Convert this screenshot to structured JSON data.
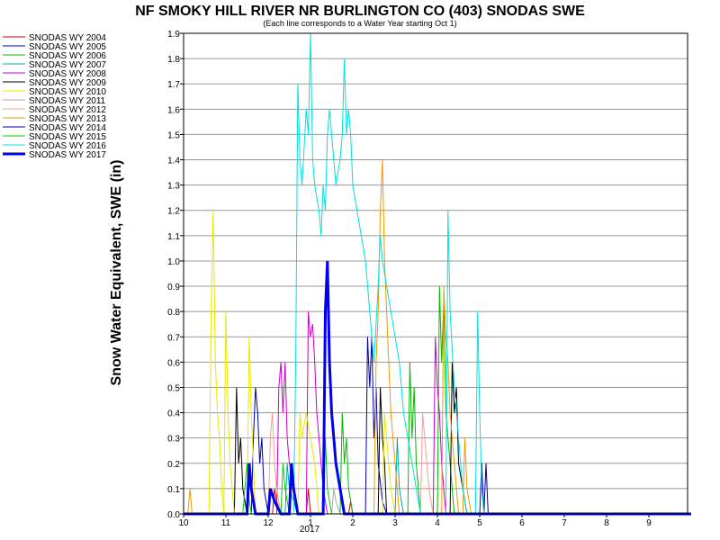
{
  "chart_data": {
    "type": "line",
    "title": "NF SMOKY HILL RIVER NR BURLINGTON CO (403) SNODAS SWE",
    "subtitle": "(Each line corresponds to a Water Year starting Oct 1)",
    "ylabel": "Snow Water Equivalent, SWE (in)",
    "xlabel": "",
    "year_label": "2017",
    "ylim": [
      0,
      1.9
    ],
    "xlim": [
      0,
      12
    ],
    "x_unit": "month offset from Oct 1",
    "x_ticks": [
      {
        "value": 0,
        "label": "10"
      },
      {
        "value": 1,
        "label": "11"
      },
      {
        "value": 2,
        "label": "12"
      },
      {
        "value": 3,
        "label": "1"
      },
      {
        "value": 4,
        "label": "2"
      },
      {
        "value": 5,
        "label": "3"
      },
      {
        "value": 6,
        "label": "4"
      },
      {
        "value": 7,
        "label": "5"
      },
      {
        "value": 8,
        "label": "6"
      },
      {
        "value": 9,
        "label": "7"
      },
      {
        "value": 10,
        "label": "8"
      },
      {
        "value": 11,
        "label": "9"
      }
    ],
    "y_ticks": [
      "0.0",
      "0.1",
      "0.2",
      "0.3",
      "0.4",
      "0.5",
      "0.6",
      "0.7",
      "0.8",
      "0.9",
      "1.0",
      "1.1",
      "1.2",
      "1.3",
      "1.4",
      "1.5",
      "1.6",
      "1.7",
      "1.8",
      "1.9"
    ],
    "grid": true,
    "legend_position": "left",
    "series": [
      {
        "name": "SNODAS WY 2004",
        "color": "#cc0000",
        "width": 1,
        "points": [
          [
            0,
            0
          ],
          [
            2.1,
            0
          ],
          [
            2.15,
            0.1
          ],
          [
            2.2,
            0.05
          ],
          [
            2.3,
            0
          ],
          [
            2.9,
            0
          ],
          [
            2.95,
            0.1
          ],
          [
            3.0,
            0
          ],
          [
            3.9,
            0
          ],
          [
            3.95,
            0.05
          ],
          [
            4.0,
            0
          ],
          [
            12,
            0
          ]
        ]
      },
      {
        "name": "SNODAS WY 2005",
        "color": "#0000aa",
        "width": 1,
        "points": [
          [
            0,
            0
          ],
          [
            1.6,
            0
          ],
          [
            1.65,
            0.3
          ],
          [
            1.7,
            0.5
          ],
          [
            1.75,
            0.4
          ],
          [
            1.8,
            0.2
          ],
          [
            1.85,
            0.3
          ],
          [
            1.9,
            0.1
          ],
          [
            2.0,
            0
          ],
          [
            4.3,
            0
          ],
          [
            4.35,
            0.7
          ],
          [
            4.4,
            0.5
          ],
          [
            4.45,
            0.7
          ],
          [
            4.5,
            0.3
          ],
          [
            4.55,
            0.5
          ],
          [
            4.6,
            0.2
          ],
          [
            4.7,
            0.05
          ],
          [
            4.8,
            0
          ],
          [
            7.0,
            0
          ],
          [
            7.05,
            0.2
          ],
          [
            7.1,
            0
          ],
          [
            12,
            0
          ]
        ]
      },
      {
        "name": "SNODAS WY 2006",
        "color": "#00bb00",
        "width": 1,
        "points": [
          [
            0,
            0
          ],
          [
            3.7,
            0
          ],
          [
            3.75,
            0.4
          ],
          [
            3.8,
            0.2
          ],
          [
            3.85,
            0.3
          ],
          [
            3.9,
            0.1
          ],
          [
            4.0,
            0
          ],
          [
            5.3,
            0
          ],
          [
            5.35,
            0.6
          ],
          [
            5.4,
            0.3
          ],
          [
            5.45,
            0.5
          ],
          [
            5.5,
            0.2
          ],
          [
            5.6,
            0
          ],
          [
            6.0,
            0
          ],
          [
            6.05,
            0.9
          ],
          [
            6.1,
            0.6
          ],
          [
            6.15,
            0.85
          ],
          [
            6.2,
            0.4
          ],
          [
            6.3,
            0.2
          ],
          [
            6.4,
            0
          ],
          [
            12,
            0
          ]
        ]
      },
      {
        "name": "SNODAS WY 2007",
        "color": "#00aaaa",
        "width": 1,
        "points": [
          [
            0,
            0
          ],
          [
            2.4,
            0
          ],
          [
            2.45,
            0.2
          ],
          [
            2.5,
            0.1
          ],
          [
            2.6,
            0.05
          ],
          [
            2.7,
            0
          ],
          [
            5.0,
            0
          ],
          [
            5.05,
            0.3
          ],
          [
            5.1,
            0.1
          ],
          [
            5.2,
            0
          ],
          [
            12,
            0
          ]
        ]
      },
      {
        "name": "SNODAS WY 2008",
        "color": "#cc00cc",
        "width": 1,
        "points": [
          [
            0,
            0
          ],
          [
            2.2,
            0
          ],
          [
            2.25,
            0.5
          ],
          [
            2.3,
            0.6
          ],
          [
            2.35,
            0.4
          ],
          [
            2.4,
            0.6
          ],
          [
            2.45,
            0.3
          ],
          [
            2.5,
            0.2
          ],
          [
            2.6,
            0.1
          ],
          [
            2.7,
            0
          ],
          [
            2.9,
            0
          ],
          [
            2.95,
            0.8
          ],
          [
            3.0,
            0.7
          ],
          [
            3.05,
            0.75
          ],
          [
            3.1,
            0.6
          ],
          [
            3.15,
            0.4
          ],
          [
            3.2,
            0.3
          ],
          [
            3.3,
            0.1
          ],
          [
            3.4,
            0
          ],
          [
            5.9,
            0
          ],
          [
            5.95,
            0.7
          ],
          [
            6.0,
            0.5
          ],
          [
            6.05,
            0.4
          ],
          [
            6.1,
            0.2
          ],
          [
            6.2,
            0
          ],
          [
            12,
            0
          ]
        ]
      },
      {
        "name": "SNODAS WY 2009",
        "color": "#000000",
        "width": 1,
        "points": [
          [
            0,
            0
          ],
          [
            1.2,
            0
          ],
          [
            1.25,
            0.5
          ],
          [
            1.3,
            0.2
          ],
          [
            1.35,
            0.3
          ],
          [
            1.4,
            0.1
          ],
          [
            1.5,
            0
          ],
          [
            4.6,
            0
          ],
          [
            4.65,
            0.5
          ],
          [
            4.7,
            0.3
          ],
          [
            4.75,
            0.2
          ],
          [
            4.8,
            0
          ],
          [
            6.3,
            0
          ],
          [
            6.35,
            0.6
          ],
          [
            6.4,
            0.4
          ],
          [
            6.45,
            0.5
          ],
          [
            6.5,
            0.2
          ],
          [
            6.6,
            0.1
          ],
          [
            6.7,
            0
          ],
          [
            12,
            0
          ]
        ]
      },
      {
        "name": "SNODAS WY 2010",
        "color": "#e8e800",
        "width": 1,
        "points": [
          [
            0,
            0
          ],
          [
            0.6,
            0
          ],
          [
            0.65,
            0.8
          ],
          [
            0.7,
            1.2
          ],
          [
            0.75,
            0.6
          ],
          [
            0.8,
            0.4
          ],
          [
            0.85,
            0.3
          ],
          [
            0.9,
            0.1
          ],
          [
            0.95,
            0
          ],
          [
            1.0,
            0.8
          ],
          [
            1.05,
            0.4
          ],
          [
            1.1,
            0.2
          ],
          [
            1.2,
            0
          ],
          [
            1.5,
            0
          ],
          [
            1.55,
            0.7
          ],
          [
            1.6,
            0.4
          ],
          [
            1.65,
            0.2
          ],
          [
            1.7,
            0
          ],
          [
            2.7,
            0
          ],
          [
            2.75,
            0.4
          ],
          [
            2.8,
            0.3
          ],
          [
            2.9,
            0.4
          ],
          [
            3.0,
            0.3
          ],
          [
            3.1,
            0.2
          ],
          [
            3.2,
            0
          ],
          [
            4.7,
            0
          ],
          [
            4.75,
            0.4
          ],
          [
            4.8,
            0.3
          ],
          [
            4.85,
            0.2
          ],
          [
            4.9,
            0.1
          ],
          [
            5.0,
            0
          ],
          [
            12,
            0
          ]
        ]
      },
      {
        "name": "SNODAS WY 2011",
        "color": "#aaaaaa",
        "width": 1,
        "points": [
          [
            0,
            0
          ],
          [
            3.5,
            0
          ],
          [
            3.55,
            0.1
          ],
          [
            3.6,
            0.05
          ],
          [
            3.7,
            0
          ],
          [
            12,
            0
          ]
        ]
      },
      {
        "name": "SNODAS WY 2012",
        "color": "#ff9999",
        "width": 1,
        "points": [
          [
            0,
            0
          ],
          [
            2.0,
            0
          ],
          [
            2.05,
            0.3
          ],
          [
            2.1,
            0.4
          ],
          [
            2.15,
            0.2
          ],
          [
            2.2,
            0.1
          ],
          [
            2.3,
            0
          ],
          [
            5.6,
            0
          ],
          [
            5.65,
            0.4
          ],
          [
            5.7,
            0.3
          ],
          [
            5.8,
            0.1
          ],
          [
            5.9,
            0
          ],
          [
            12,
            0
          ]
        ]
      },
      {
        "name": "SNODAS WY 2013",
        "color": "#ee9900",
        "width": 1,
        "points": [
          [
            0,
            0
          ],
          [
            0.1,
            0
          ],
          [
            0.15,
            0.1
          ],
          [
            0.2,
            0
          ],
          [
            4.5,
            0
          ],
          [
            4.55,
            0.6
          ],
          [
            4.6,
            0.8
          ],
          [
            4.65,
            1.2
          ],
          [
            4.7,
            1.4
          ],
          [
            4.75,
            1.0
          ],
          [
            4.8,
            0.8
          ],
          [
            4.85,
            0.6
          ],
          [
            4.9,
            0.4
          ],
          [
            5.0,
            0.2
          ],
          [
            5.1,
            0
          ],
          [
            6.1,
            0
          ],
          [
            6.15,
            0.9
          ],
          [
            6.2,
            0.7
          ],
          [
            6.25,
            0.6
          ],
          [
            6.3,
            0.4
          ],
          [
            6.4,
            0.2
          ],
          [
            6.5,
            0
          ],
          [
            6.6,
            0
          ],
          [
            6.65,
            0.3
          ],
          [
            6.7,
            0.1
          ],
          [
            6.8,
            0
          ],
          [
            12,
            0
          ]
        ]
      },
      {
        "name": "SNODAS WY 2014",
        "color": "#000099",
        "width": 1,
        "points": [
          [
            0,
            0
          ],
          [
            7.1,
            0
          ],
          [
            7.15,
            0.2
          ],
          [
            7.2,
            0
          ],
          [
            12,
            0
          ]
        ]
      },
      {
        "name": "SNODAS WY 2015",
        "color": "#00cc00",
        "width": 1,
        "points": [
          [
            0,
            0
          ],
          [
            1.4,
            0
          ],
          [
            1.45,
            0.1
          ],
          [
            1.5,
            0.2
          ],
          [
            1.55,
            0.05
          ],
          [
            1.6,
            0
          ],
          [
            2.3,
            0
          ],
          [
            2.35,
            0.2
          ],
          [
            2.4,
            0.1
          ],
          [
            2.5,
            0
          ],
          [
            3.3,
            0
          ],
          [
            3.35,
            0.3
          ],
          [
            3.4,
            0.1
          ],
          [
            3.5,
            0
          ],
          [
            12,
            0
          ]
        ]
      },
      {
        "name": "SNODAS WY 2016",
        "color": "#00e0e0",
        "width": 1,
        "points": [
          [
            0,
            0
          ],
          [
            2.6,
            0
          ],
          [
            2.65,
            0.6
          ],
          [
            2.7,
            1.7
          ],
          [
            2.75,
            1.4
          ],
          [
            2.8,
            1.3
          ],
          [
            2.9,
            1.6
          ],
          [
            2.95,
            1.5
          ],
          [
            3.0,
            1.9
          ],
          [
            3.05,
            1.4
          ],
          [
            3.1,
            1.3
          ],
          [
            3.2,
            1.2
          ],
          [
            3.25,
            1.1
          ],
          [
            3.3,
            1.3
          ],
          [
            3.35,
            1.2
          ],
          [
            3.4,
            1.5
          ],
          [
            3.45,
            1.6
          ],
          [
            3.5,
            1.5
          ],
          [
            3.6,
            1.3
          ],
          [
            3.7,
            1.4
          ],
          [
            3.75,
            1.5
          ],
          [
            3.8,
            1.8
          ],
          [
            3.85,
            1.5
          ],
          [
            3.9,
            1.6
          ],
          [
            3.95,
            1.5
          ],
          [
            4.0,
            1.3
          ],
          [
            4.1,
            1.2
          ],
          [
            4.2,
            1.1
          ],
          [
            4.3,
            1.0
          ],
          [
            4.4,
            0.8
          ],
          [
            4.5,
            0.6
          ],
          [
            4.6,
            0.9
          ],
          [
            4.65,
            1.1
          ],
          [
            4.7,
            1.0
          ],
          [
            4.8,
            0.9
          ],
          [
            4.9,
            0.8
          ],
          [
            5.0,
            0.7
          ],
          [
            5.1,
            0.6
          ],
          [
            5.2,
            0.4
          ],
          [
            5.3,
            0.3
          ],
          [
            5.4,
            0.2
          ],
          [
            5.5,
            0.1
          ],
          [
            5.6,
            0
          ],
          [
            6.2,
            0
          ],
          [
            6.25,
            1.2
          ],
          [
            6.3,
            0.8
          ],
          [
            6.4,
            0.5
          ],
          [
            6.5,
            0.3
          ],
          [
            6.6,
            0.1
          ],
          [
            6.7,
            0
          ],
          [
            6.9,
            0
          ],
          [
            6.95,
            0.8
          ],
          [
            7.0,
            0.4
          ],
          [
            7.05,
            0.1
          ],
          [
            7.1,
            0
          ],
          [
            12,
            0
          ]
        ]
      },
      {
        "name": "SNODAS WY 2017",
        "color": "#0000ee",
        "width": 3,
        "points": [
          [
            0,
            0
          ],
          [
            1.5,
            0
          ],
          [
            1.55,
            0.2
          ],
          [
            1.6,
            0.1
          ],
          [
            1.7,
            0
          ],
          [
            2.0,
            0
          ],
          [
            2.05,
            0.1
          ],
          [
            2.15,
            0.05
          ],
          [
            2.3,
            0
          ],
          [
            2.5,
            0
          ],
          [
            2.55,
            0.2
          ],
          [
            2.6,
            0.1
          ],
          [
            2.7,
            0
          ],
          [
            3.3,
            0
          ],
          [
            3.35,
            0.8
          ],
          [
            3.4,
            1.0
          ],
          [
            3.45,
            0.6
          ],
          [
            3.5,
            0.4
          ],
          [
            3.55,
            0.3
          ],
          [
            3.6,
            0.2
          ],
          [
            3.7,
            0.1
          ],
          [
            3.8,
            0
          ],
          [
            12,
            0
          ]
        ]
      }
    ]
  }
}
